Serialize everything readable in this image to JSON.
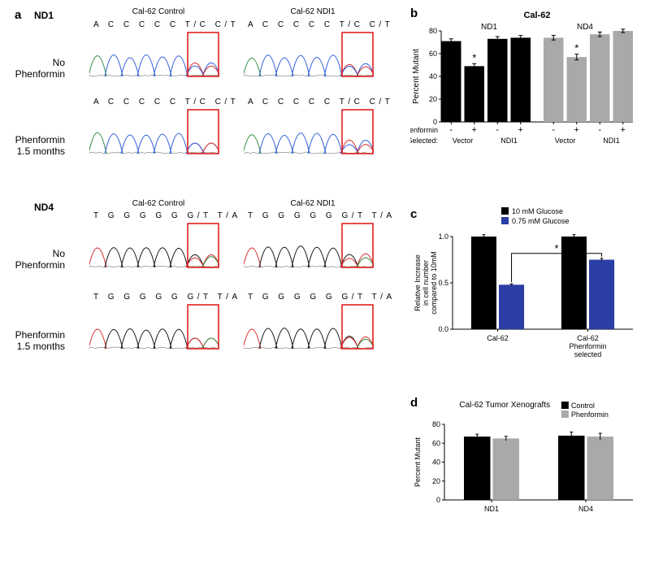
{
  "panelA": {
    "label": "a",
    "groups": [
      {
        "sub": "ND1",
        "seq": "A C C C C C T/C C/T",
        "rows": [
          "No Phenformin",
          "Phenformin 1.5 months"
        ],
        "titles": [
          "Cal-62 Control",
          "Cal-62 NDI1"
        ],
        "traces": {
          "colors": {
            "A": "#2e8b3d",
            "C": "#2a5bd8",
            "G": "#111111",
            "T": "#d62728"
          },
          "box_color": "#e02020"
        }
      },
      {
        "sub": "ND4",
        "seq": "T G G G G G G/T T/A",
        "rows": [
          "No Phenformin",
          "Phenformin 1.5 months"
        ],
        "titles": [
          "Cal-62 Control",
          "Cal-62 NDI1"
        ],
        "traces": {
          "colors": {
            "A": "#2e8b3d",
            "C": "#2a5bd8",
            "G": "#111111",
            "T": "#d62728"
          },
          "box_color": "#e02020"
        }
      }
    ]
  },
  "panelB": {
    "label": "b",
    "title": "Cal-62",
    "groups": [
      "ND1",
      "ND4"
    ],
    "ylabel": "Percent Mutant",
    "ylim": [
      0,
      80
    ],
    "ytick_step": 20,
    "bars": [
      {
        "value": 71,
        "err": 2,
        "color": "#000000",
        "star": false
      },
      {
        "value": 49,
        "err": 2.2,
        "color": "#000000",
        "star": true
      },
      {
        "value": 73,
        "err": 2,
        "color": "#000000",
        "star": false
      },
      {
        "value": 74,
        "err": 2,
        "color": "#000000",
        "star": false
      },
      {
        "value": 74,
        "err": 2,
        "color": "#a9a9ab",
        "star": false
      },
      {
        "value": 57,
        "err": 2.5,
        "color": "#a9a9ab",
        "star": true
      },
      {
        "value": 77,
        "err": 2,
        "color": "#a9a9ab",
        "star": false
      },
      {
        "value": 80,
        "err": 1.5,
        "color": "#a9a9ab",
        "star": false
      }
    ],
    "x_rows": [
      {
        "label": "Phenformin",
        "values": [
          "-",
          "+",
          "-",
          "+",
          "-",
          "+",
          "-",
          "+"
        ]
      },
      {
        "label": "Selected:",
        "values": [
          "Vector",
          "NDI1",
          "Vector",
          "NDI1"
        ],
        "span": 2
      }
    ],
    "axis_color": "#000000",
    "bg": "#ffffff",
    "font_size": 9
  },
  "panelC": {
    "label": "c",
    "ylabel": "Relative Increase\nin cell number\ncompared to 10mM",
    "ylim": [
      0,
      1.0
    ],
    "ytick_step": 0.5,
    "legend": [
      {
        "label": "10 mM Glucose",
        "color": "#000000"
      },
      {
        "label": "0.75 mM Glucose",
        "color": "#2a3ea5"
      }
    ],
    "groups": [
      {
        "label": "Cal-62",
        "bars": [
          {
            "value": 1.0,
            "err": 0.02,
            "color": "#000000"
          },
          {
            "value": 0.48,
            "err": 0.01,
            "color": "#2a3ea5"
          }
        ]
      },
      {
        "label": "Cal-62\nPhenformin\nselected",
        "bars": [
          {
            "value": 1.0,
            "err": 0.02,
            "color": "#000000"
          },
          {
            "value": 0.75,
            "err": 0.015,
            "color": "#2a3ea5"
          }
        ]
      }
    ],
    "sig": {
      "between_bar_idx": [
        1,
        3
      ],
      "marker": "*"
    },
    "axis_color": "#000000"
  },
  "panelD": {
    "label": "d",
    "title": "Cal-62 Tumor Xenografts",
    "ylabel": "Percent Mutant",
    "ylim": [
      0,
      80
    ],
    "ytick_step": 20,
    "legend": [
      {
        "label": "Control",
        "color": "#000000"
      },
      {
        "label": "Phenformin",
        "color": "#a9a9ab"
      }
    ],
    "groups": [
      {
        "label": "ND1",
        "bars": [
          {
            "value": 67,
            "err": 2.5,
            "color": "#000000"
          },
          {
            "value": 65,
            "err": 2.3,
            "color": "#a9a9ab"
          }
        ]
      },
      {
        "label": "ND4",
        "bars": [
          {
            "value": 68,
            "err": 3.8,
            "color": "#000000"
          },
          {
            "value": 67,
            "err": 3.5,
            "color": "#a9a9ab"
          }
        ]
      }
    ],
    "axis_color": "#000000"
  }
}
